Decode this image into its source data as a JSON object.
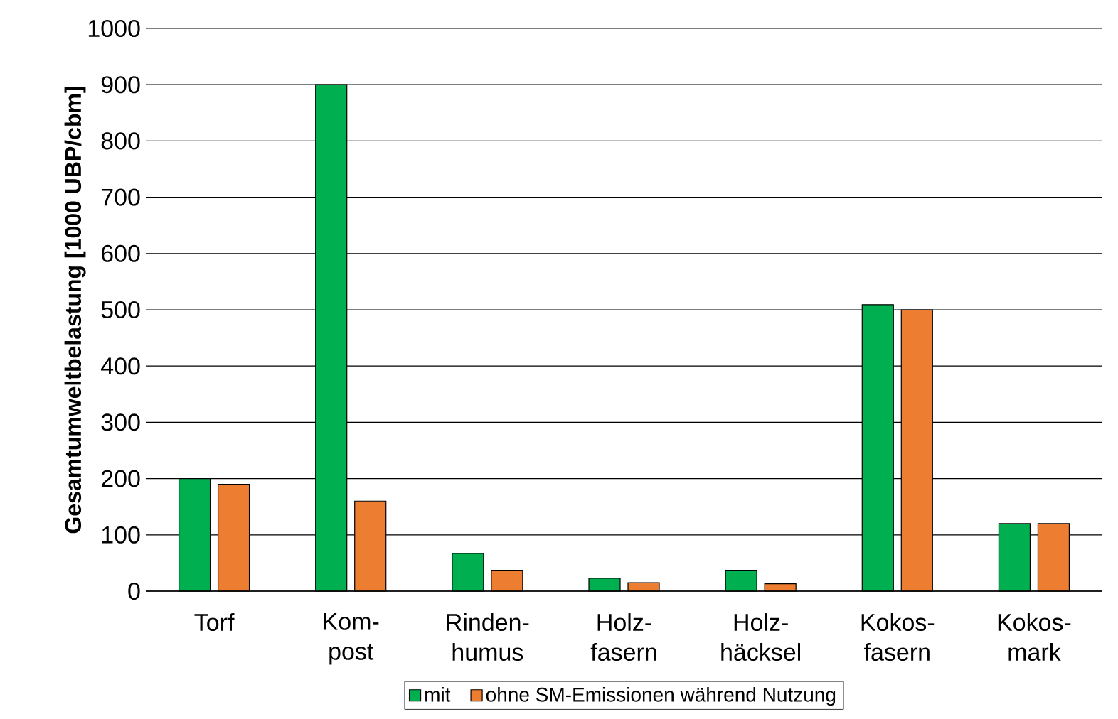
{
  "chart_data": {
    "type": "bar",
    "ylabel": "Gesamtumweltbelastung [1000 UBP/cbm]",
    "categories": [
      "Torf",
      "Kom- post",
      "Rinden- humus",
      "Holz- fasern",
      "Holz- häcksel",
      "Kokos- fasern",
      "Kokos- mark"
    ],
    "series": [
      {
        "name": "mit",
        "color": "#00b050",
        "values": [
          200,
          900,
          67,
          23,
          37,
          509,
          120
        ]
      },
      {
        "name": "ohne SM-Emissionen während Nutzung",
        "color": "#ed7d31",
        "values": [
          190,
          160,
          37,
          15,
          13,
          500,
          120
        ]
      }
    ],
    "ylim": [
      0,
      1000
    ],
    "yticks": [
      0,
      100,
      200,
      300,
      400,
      500,
      600,
      700,
      800,
      900,
      1000
    ],
    "grid": "y",
    "legend": "bottom"
  }
}
